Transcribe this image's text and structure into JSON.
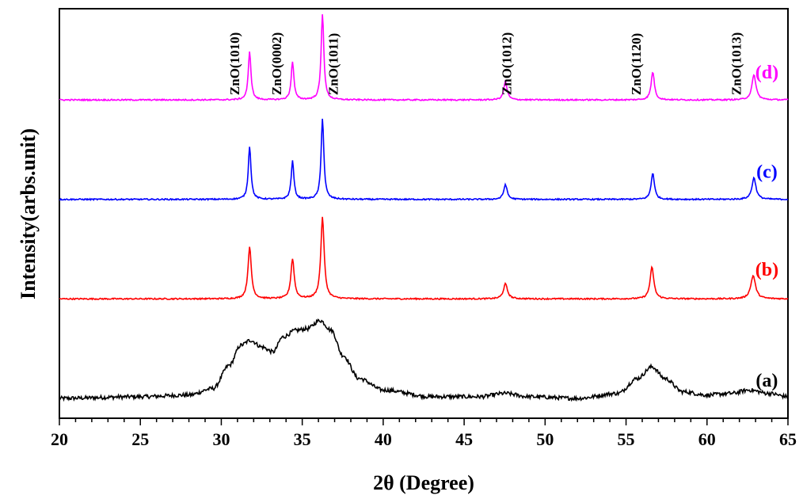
{
  "chart_data": {
    "type": "line",
    "xlabel": "2θ (Degree)",
    "ylabel": "Intensity(arbs.unit)",
    "xlim": [
      20,
      65
    ],
    "xticks": [
      20,
      25,
      30,
      35,
      40,
      45,
      50,
      55,
      60,
      65
    ],
    "y_axis_labels": false,
    "series": [
      {
        "name": "(a)",
        "color": "#000000",
        "baseline": 0.0,
        "noise": 0.012,
        "points": [
          [
            20,
            0.0
          ],
          [
            25,
            0.01
          ],
          [
            28,
            0.02
          ],
          [
            29.5,
            0.06
          ],
          [
            30.5,
            0.2
          ],
          [
            31.2,
            0.32
          ],
          [
            31.8,
            0.35
          ],
          [
            32.5,
            0.31
          ],
          [
            33.2,
            0.28
          ],
          [
            33.8,
            0.37
          ],
          [
            34.6,
            0.41
          ],
          [
            35.3,
            0.42
          ],
          [
            36.1,
            0.47
          ],
          [
            36.8,
            0.41
          ],
          [
            37.5,
            0.26
          ],
          [
            38.5,
            0.12
          ],
          [
            40,
            0.05
          ],
          [
            43,
            0.01
          ],
          [
            46,
            0.01
          ],
          [
            47.5,
            0.03
          ],
          [
            49,
            0.01
          ],
          [
            52,
            0.0
          ],
          [
            54.5,
            0.03
          ],
          [
            55.7,
            0.12
          ],
          [
            56.6,
            0.19
          ],
          [
            57.4,
            0.12
          ],
          [
            58.5,
            0.04
          ],
          [
            60,
            0.02
          ],
          [
            61.5,
            0.03
          ],
          [
            62.6,
            0.05
          ],
          [
            63.8,
            0.03
          ],
          [
            65,
            0.01
          ]
        ]
      },
      {
        "name": "(b)",
        "color": "#ff0000",
        "baseline": 0.6,
        "noise": 0.004,
        "peaks": [
          {
            "x": 31.75,
            "h": 0.31,
            "w": 0.25
          },
          {
            "x": 34.4,
            "h": 0.24,
            "w": 0.25
          },
          {
            "x": 36.25,
            "h": 0.49,
            "w": 0.25
          },
          {
            "x": 47.55,
            "h": 0.09,
            "w": 0.3
          },
          {
            "x": 56.6,
            "h": 0.19,
            "w": 0.28
          },
          {
            "x": 62.85,
            "h": 0.14,
            "w": 0.35
          }
        ]
      },
      {
        "name": "(c)",
        "color": "#0000ff",
        "baseline": 1.2,
        "noise": 0.004,
        "peaks": [
          {
            "x": 31.75,
            "h": 0.32,
            "w": 0.2
          },
          {
            "x": 34.4,
            "h": 0.23,
            "w": 0.2
          },
          {
            "x": 36.25,
            "h": 0.49,
            "w": 0.2
          },
          {
            "x": 47.55,
            "h": 0.09,
            "w": 0.25
          },
          {
            "x": 56.65,
            "h": 0.16,
            "w": 0.24
          },
          {
            "x": 62.9,
            "h": 0.13,
            "w": 0.3
          }
        ]
      },
      {
        "name": "(d)",
        "color": "#ff00ff",
        "baseline": 1.8,
        "noise": 0.004,
        "peaks": [
          {
            "x": 31.75,
            "h": 0.29,
            "w": 0.2
          },
          {
            "x": 34.4,
            "h": 0.23,
            "w": 0.2
          },
          {
            "x": 36.25,
            "h": 0.52,
            "w": 0.2
          },
          {
            "x": 47.55,
            "h": 0.11,
            "w": 0.25
          },
          {
            "x": 56.65,
            "h": 0.17,
            "w": 0.24
          },
          {
            "x": 62.9,
            "h": 0.15,
            "w": 0.3
          }
        ]
      }
    ],
    "ylim": [
      -0.12,
      2.35
    ],
    "annotations": [
      {
        "text": "ZnO(1010)",
        "x": 30.8
      },
      {
        "text": "ZnO(0002)",
        "x": 33.4
      },
      {
        "text": "ZnO(1011)",
        "x": 36.9
      },
      {
        "text": "ZnO(1012)",
        "x": 47.6
      },
      {
        "text": "ZnO(1120)",
        "x": 55.6
      },
      {
        "text": "ZnO(1013)",
        "x": 61.8
      }
    ]
  }
}
